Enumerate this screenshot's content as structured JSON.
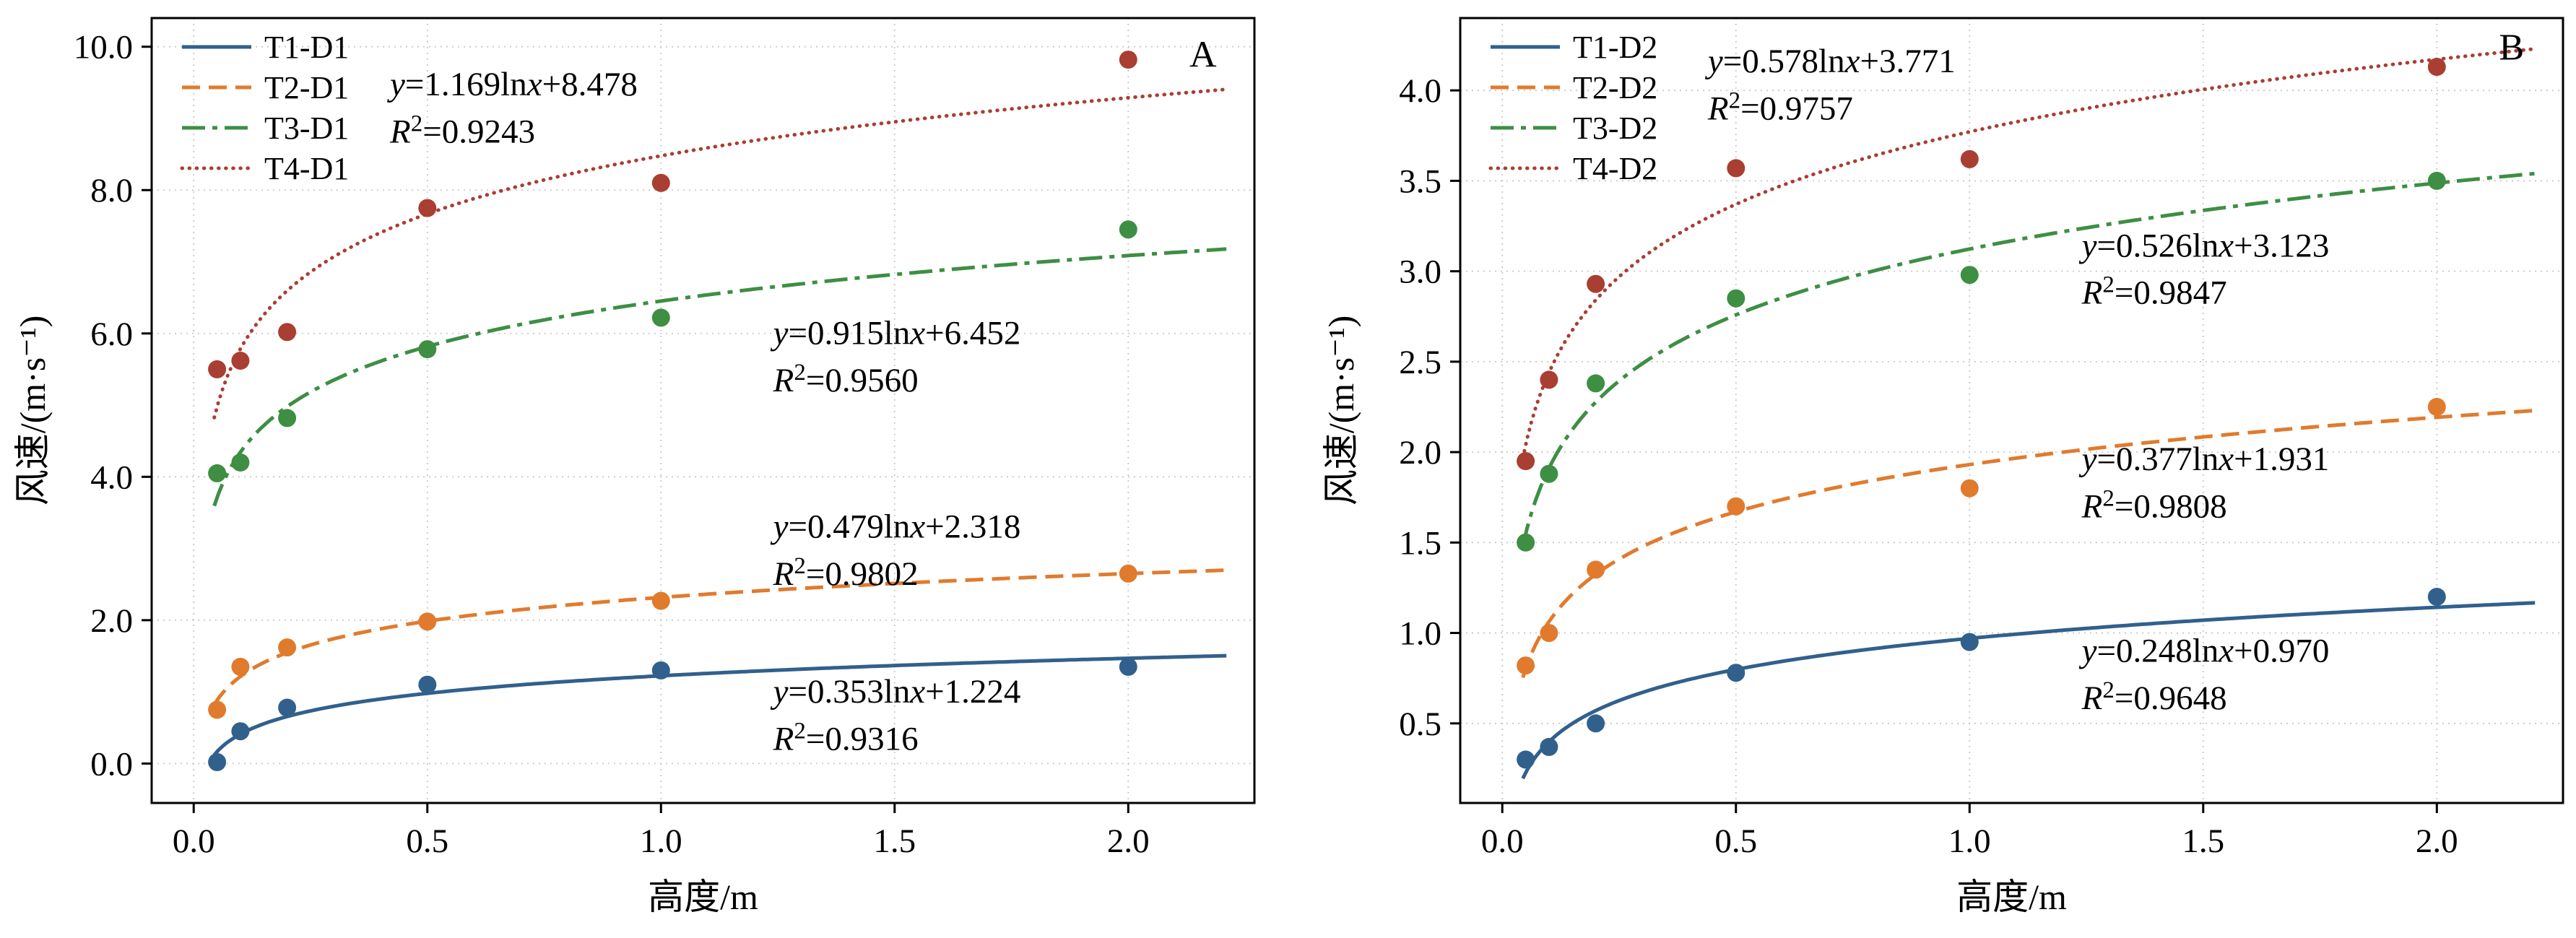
{
  "figure": {
    "background": "#ffffff",
    "font_color": "#000000",
    "grid_color": "#c9c9c9",
    "axis_color": "#000000"
  },
  "chart_data": [
    {
      "type": "scatter",
      "panel_label": "A",
      "label_x": 2.16,
      "label_y": 9.72,
      "xlabel": "高度/m",
      "ylabel": "风速/(m·s⁻¹)",
      "xlim": [
        -0.09,
        2.27
      ],
      "ylim": [
        -0.55,
        10.4
      ],
      "xtick_values": [
        0,
        0.5,
        1,
        1.5,
        2
      ],
      "xtick_labels": [
        "0.0",
        "0.5",
        "1.0",
        "1.5",
        "2.0"
      ],
      "ytick_values": [
        0,
        2,
        4,
        6,
        8,
        10
      ],
      "ytick_labels": [
        "0.0",
        "2.0",
        "4.0",
        "6.0",
        "8.0",
        "10.0"
      ],
      "grid": true,
      "legend_position": "top-left",
      "series": [
        {
          "name": "T1-D1",
          "color": "#31608d",
          "line_style": "solid",
          "x": [
            0.05,
            0.1,
            0.2,
            0.5,
            1.0,
            2.0
          ],
          "y": [
            0.02,
            0.45,
            0.78,
            1.1,
            1.3,
            1.35
          ],
          "fit": {
            "a": 0.353,
            "b": 1.224
          }
        },
        {
          "name": "T2-D1",
          "color": "#e07b2e",
          "line_style": "dashed",
          "x": [
            0.05,
            0.1,
            0.2,
            0.5,
            1.0,
            2.0
          ],
          "y": [
            0.75,
            1.35,
            1.62,
            1.98,
            2.27,
            2.65
          ],
          "fit": {
            "a": 0.479,
            "b": 2.318
          }
        },
        {
          "name": "T3-D1",
          "color": "#3e8e44",
          "line_style": "dashdot",
          "x": [
            0.05,
            0.1,
            0.2,
            0.5,
            1.0,
            2.0
          ],
          "y": [
            4.05,
            4.2,
            4.82,
            5.78,
            6.22,
            7.45
          ],
          "fit": {
            "a": 0.915,
            "b": 6.452
          }
        },
        {
          "name": "T4-D1",
          "color": "#a93e32",
          "line_style": "dotted",
          "x": [
            0.05,
            0.1,
            0.2,
            0.5,
            1.0,
            2.0
          ],
          "y": [
            5.5,
            5.62,
            6.02,
            7.75,
            8.1,
            9.82
          ],
          "fit": {
            "a": 1.169,
            "b": 8.478
          }
        }
      ],
      "annotations": [
        {
          "eq": "y=1.169lnx+8.478",
          "r2": "0.9243",
          "x": 0.42,
          "y1": 9.32,
          "y2": 8.66
        },
        {
          "eq": "y=0.915lnx+6.452",
          "r2": "0.9560",
          "x": 1.24,
          "y1": 5.85,
          "y2": 5.19
        },
        {
          "eq": "y=0.479lnx+2.318",
          "r2": "0.9802",
          "x": 1.24,
          "y1": 3.15,
          "y2": 2.49
        },
        {
          "eq": "y=0.353lnx+1.224",
          "r2": "0.9316",
          "x": 1.24,
          "y1": 0.85,
          "y2": 0.19
        }
      ]
    },
    {
      "type": "scatter",
      "panel_label": "B",
      "label_x": 2.16,
      "label_y": 4.17,
      "xlabel": "高度/m",
      "ylabel": "风速/(m·s⁻¹)",
      "xlim": [
        -0.09,
        2.27
      ],
      "ylim": [
        0.06,
        4.4
      ],
      "xtick_values": [
        0,
        0.5,
        1,
        1.5,
        2
      ],
      "xtick_labels": [
        "0.0",
        "0.5",
        "1.0",
        "1.5",
        "2.0"
      ],
      "ytick_values": [
        0.5,
        1,
        1.5,
        2,
        2.5,
        3,
        3.5,
        4
      ],
      "ytick_labels": [
        "0.5",
        "1.0",
        "1.5",
        "2.0",
        "2.5",
        "3.0",
        "3.5",
        "4.0"
      ],
      "grid": true,
      "legend_position": "top-left",
      "series": [
        {
          "name": "T1-D2",
          "color": "#31608d",
          "line_style": "solid",
          "x": [
            0.05,
            0.1,
            0.2,
            0.5,
            1.0,
            2.0
          ],
          "y": [
            0.3,
            0.37,
            0.5,
            0.78,
            0.95,
            1.2
          ],
          "fit": {
            "a": 0.248,
            "b": 0.97
          }
        },
        {
          "name": "T2-D2",
          "color": "#e07b2e",
          "line_style": "dashed",
          "x": [
            0.05,
            0.1,
            0.2,
            0.5,
            1.0,
            2.0
          ],
          "y": [
            0.82,
            1.0,
            1.35,
            1.7,
            1.8,
            2.25
          ],
          "fit": {
            "a": 0.377,
            "b": 1.931
          }
        },
        {
          "name": "T3-D2",
          "color": "#3e8e44",
          "line_style": "dashdot",
          "x": [
            0.05,
            0.1,
            0.2,
            0.5,
            1.0,
            2.0
          ],
          "y": [
            1.5,
            1.88,
            2.38,
            2.85,
            2.98,
            3.5
          ],
          "fit": {
            "a": 0.526,
            "b": 3.123
          }
        },
        {
          "name": "T4-D2",
          "color": "#a93e32",
          "line_style": "dotted",
          "x": [
            0.05,
            0.1,
            0.2,
            0.5,
            1.0,
            2.0
          ],
          "y": [
            1.95,
            2.4,
            2.93,
            3.57,
            3.62,
            4.13
          ],
          "fit": {
            "a": 0.578,
            "b": 3.771
          }
        }
      ],
      "annotations": [
        {
          "eq": "y=0.578lnx+3.771",
          "r2": "0.9757",
          "x": 0.44,
          "y1": 4.1,
          "y2": 3.84
        },
        {
          "eq": "y=0.526lnx+3.123",
          "r2": "0.9847",
          "x": 1.24,
          "y1": 3.08,
          "y2": 2.82
        },
        {
          "eq": "y=0.377lnx+1.931",
          "r2": "0.9808",
          "x": 1.24,
          "y1": 1.9,
          "y2": 1.64
        },
        {
          "eq": "y=0.248lnx+0.970",
          "r2": "0.9648",
          "x": 1.24,
          "y1": 0.84,
          "y2": 0.58
        }
      ]
    }
  ]
}
